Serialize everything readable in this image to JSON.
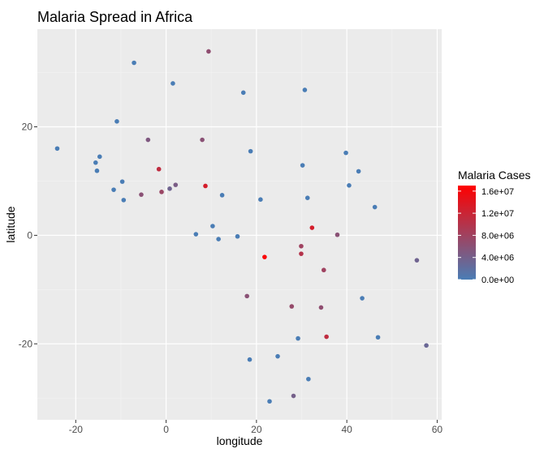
{
  "chart_data": {
    "type": "scatter",
    "title": "Malaria Spread in Africa",
    "xlabel": "longitude",
    "ylabel": "latitude",
    "xlim": [
      -28.5,
      61
    ],
    "ylim": [
      -34,
      38
    ],
    "xticks": [
      -20,
      0,
      20,
      40,
      60
    ],
    "yticks": [
      -20,
      0,
      20
    ],
    "grid": true,
    "legend": {
      "title": "Malaria Cases",
      "position": "right",
      "labels": [
        "1.6e+07",
        "1.2e+07",
        "8.0e+06",
        "4.0e+06",
        "0.0e+00"
      ],
      "breaks": [
        16000000,
        12000000,
        8000000,
        4000000,
        0
      ],
      "range": [
        0,
        17000000
      ],
      "low_color": "#4a7db5",
      "high_color": "#ff0000"
    },
    "colors": {
      "panel": "#ebebeb",
      "grid_major": "#ffffff",
      "grid_minor": "#f3f3f3"
    },
    "points": [
      {
        "x": -7.1,
        "y": 31.8,
        "cases": 0
      },
      {
        "x": 9.4,
        "y": 33.9,
        "cases": 6500000
      },
      {
        "x": 1.5,
        "y": 28.0,
        "cases": 0
      },
      {
        "x": 17.1,
        "y": 26.3,
        "cases": 0
      },
      {
        "x": 30.7,
        "y": 26.8,
        "cases": 0
      },
      {
        "x": -24.1,
        "y": 16.0,
        "cases": 0
      },
      {
        "x": -10.9,
        "y": 21.0,
        "cases": 0
      },
      {
        "x": -15.6,
        "y": 13.4,
        "cases": 0
      },
      {
        "x": -14.7,
        "y": 14.5,
        "cases": 0
      },
      {
        "x": -15.3,
        "y": 11.9,
        "cases": 0
      },
      {
        "x": -4.0,
        "y": 17.6,
        "cases": 5000000
      },
      {
        "x": 8.0,
        "y": 17.6,
        "cases": 6000000
      },
      {
        "x": 18.7,
        "y": 15.5,
        "cases": 0
      },
      {
        "x": 39.8,
        "y": 15.2,
        "cases": 0
      },
      {
        "x": 30.2,
        "y": 12.9,
        "cases": 0
      },
      {
        "x": 42.6,
        "y": 11.8,
        "cases": 0
      },
      {
        "x": -1.6,
        "y": 12.2,
        "cases": 11000000
      },
      {
        "x": 8.7,
        "y": 9.1,
        "cases": 13000000
      },
      {
        "x": -11.6,
        "y": 8.4,
        "cases": 0
      },
      {
        "x": -9.7,
        "y": 9.9,
        "cases": 0
      },
      {
        "x": -9.4,
        "y": 6.5,
        "cases": 0
      },
      {
        "x": -5.5,
        "y": 7.5,
        "cases": 6000000
      },
      {
        "x": -1.0,
        "y": 8.0,
        "cases": 7500000
      },
      {
        "x": 0.8,
        "y": 8.6,
        "cases": 3500000
      },
      {
        "x": 2.1,
        "y": 9.3,
        "cases": 4500000
      },
      {
        "x": 12.4,
        "y": 7.4,
        "cases": 0
      },
      {
        "x": 20.9,
        "y": 6.6,
        "cases": 0
      },
      {
        "x": 31.3,
        "y": 6.9,
        "cases": 0
      },
      {
        "x": 40.5,
        "y": 9.2,
        "cases": 0
      },
      {
        "x": 46.2,
        "y": 5.2,
        "cases": 0
      },
      {
        "x": 10.3,
        "y": 1.7,
        "cases": 0
      },
      {
        "x": 6.6,
        "y": 0.2,
        "cases": 0
      },
      {
        "x": 11.6,
        "y": -0.7,
        "cases": 0
      },
      {
        "x": 15.8,
        "y": -0.2,
        "cases": 0
      },
      {
        "x": 21.8,
        "y": -4.0,
        "cases": 16500000
      },
      {
        "x": 32.3,
        "y": 1.4,
        "cases": 13000000
      },
      {
        "x": 37.9,
        "y": 0.1,
        "cases": 6000000
      },
      {
        "x": 29.9,
        "y": -2.0,
        "cases": 8000000
      },
      {
        "x": 29.9,
        "y": -3.4,
        "cases": 10000000
      },
      {
        "x": 34.9,
        "y": -6.4,
        "cases": 8000000
      },
      {
        "x": 55.5,
        "y": -4.6,
        "cases": 3500000
      },
      {
        "x": 17.9,
        "y": -11.2,
        "cases": 6000000
      },
      {
        "x": 27.8,
        "y": -13.1,
        "cases": 7000000
      },
      {
        "x": 34.3,
        "y": -13.3,
        "cases": 6500000
      },
      {
        "x": 43.4,
        "y": -11.6,
        "cases": 0
      },
      {
        "x": 35.5,
        "y": -18.7,
        "cases": 11000000
      },
      {
        "x": 29.2,
        "y": -19.0,
        "cases": 0
      },
      {
        "x": 46.9,
        "y": -18.8,
        "cases": 0
      },
      {
        "x": 57.6,
        "y": -20.3,
        "cases": 3000000
      },
      {
        "x": 18.5,
        "y": -22.9,
        "cases": 0
      },
      {
        "x": 24.7,
        "y": -22.3,
        "cases": 0
      },
      {
        "x": 31.5,
        "y": -26.5,
        "cases": 0
      },
      {
        "x": 28.2,
        "y": -29.6,
        "cases": 4000000
      },
      {
        "x": 22.9,
        "y": -30.6,
        "cases": 0
      }
    ]
  }
}
